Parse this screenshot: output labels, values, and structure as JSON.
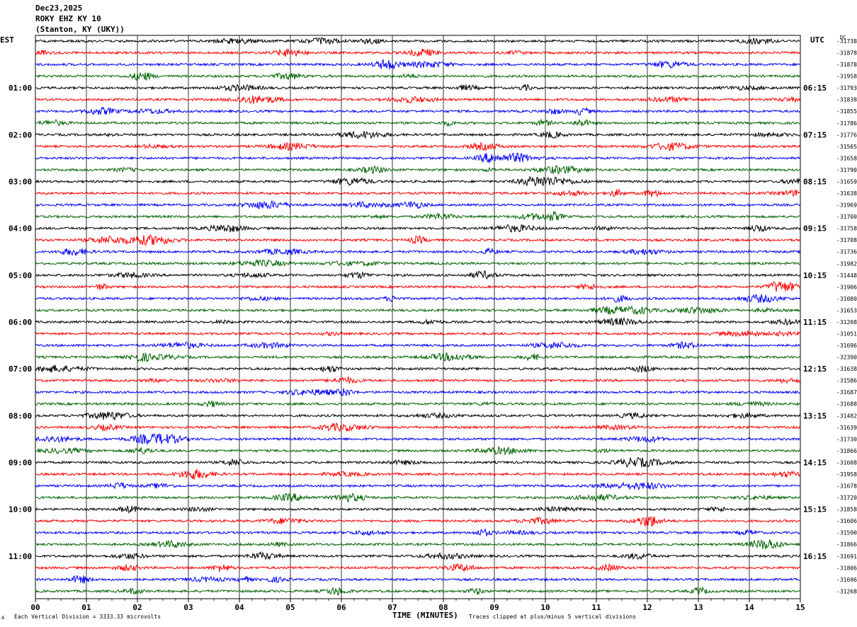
{
  "header": {
    "date": "Dec23,2025",
    "station": "ROKY EHZ KY 10",
    "location": "(Stanton, KY (UKY))"
  },
  "left_tz": "EST",
  "right_tz": "UTC",
  "dc_label": "DC",
  "footer": {
    "scale_note": "Each Vertical Division = 3333.33 microvolts",
    "clip_note": "Traces clipped at plus/minus 5 vertical divisions",
    "mark": "A"
  },
  "chart_data": {
    "type": "line",
    "xlabel": "TIME (MINUTES)",
    "xlim": [
      0,
      15
    ],
    "x_ticks": [
      "00",
      "01",
      "02",
      "03",
      "04",
      "05",
      "06",
      "07",
      "08",
      "09",
      "10",
      "11",
      "12",
      "13",
      "14",
      "15"
    ],
    "trace_colors": [
      "#000000",
      "#ff0000",
      "#0000ff",
      "#006400"
    ],
    "traces_per_hour": 4,
    "left_hour_labels": [
      "01:00",
      "02:00",
      "03:00",
      "04:00",
      "05:00",
      "06:00",
      "07:00",
      "08:00",
      "09:00",
      "10:00",
      "11:00"
    ],
    "right_hour_labels": [
      "06:15",
      "07:15",
      "08:15",
      "09:15",
      "10:15",
      "11:15",
      "12:15",
      "13:15",
      "14:15",
      "15:15",
      "16:15"
    ],
    "dc_offsets": [
      "-31738",
      "-31878",
      "-31878",
      "-31958",
      "-31793",
      "-31838",
      "-31855",
      "-31786",
      "-31776",
      "-31505",
      "-31658",
      "-31790",
      "-31659",
      "-31638",
      "-31969",
      "-31700",
      "-31758",
      "-31708",
      "-31736",
      "-31982",
      "-31448",
      "-31906",
      "-31080",
      "-31653",
      "-31208",
      "-31051",
      "-31696",
      "-32390",
      "-31638",
      "-31586",
      "-31687",
      "-31688",
      "-31482",
      "-31639",
      "-31730",
      "-31866",
      "-31608",
      "-31958",
      "-31678",
      "-31720",
      "-31858",
      "-31606",
      "-31590",
      "-31866",
      "-31691",
      "-31806",
      "-31696",
      "-31268"
    ],
    "grid": true
  }
}
